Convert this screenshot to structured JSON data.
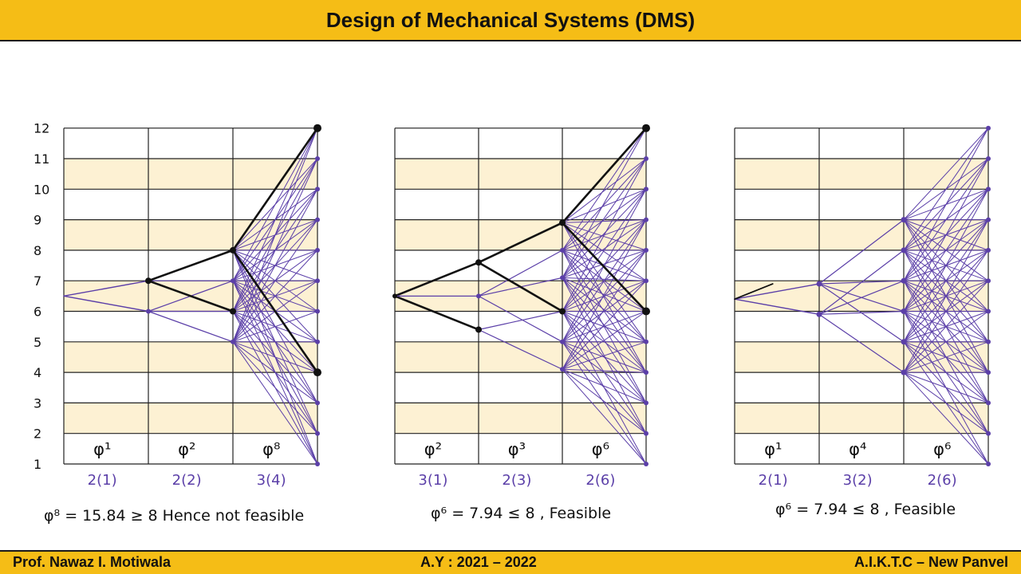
{
  "header": {
    "title": "Design of Mechanical Systems (DMS)"
  },
  "footer": {
    "left": "Prof. Nawaz I. Motiwala",
    "center": "A.Y : 2021 – 2022",
    "right": "A.I.K.T.C – New Panvel"
  },
  "colors": {
    "bar": "#f5bd16",
    "band": "#fdf1d3",
    "pen_black": "#111111",
    "pen_purple": "#5b3fa8"
  },
  "axis": {
    "y_labels": [
      "1",
      "2",
      "3",
      "4",
      "5",
      "6",
      "7",
      "8",
      "9",
      "10",
      "11",
      "12"
    ]
  },
  "diagrams": [
    {
      "id": "left",
      "stage_labels": [
        "φ¹",
        "φ²",
        "φ⁸"
      ],
      "sub_labels": [
        "2(1)",
        "2(2)",
        "3(4)"
      ],
      "conclusion": "φ⁸ = 15.84 ≥ 8   Hence not feasible"
    },
    {
      "id": "middle",
      "stage_labels": [
        "φ²",
        "φ³",
        "φ⁶"
      ],
      "sub_labels": [
        "3(1)",
        "2(3)",
        "2(6)"
      ],
      "conclusion": "φ⁶ = 7.94 ≤ 8 , Feasible"
    },
    {
      "id": "right",
      "stage_labels": [
        "φ¹",
        "φ⁴",
        "φ⁶"
      ],
      "sub_labels": [
        "2(1)",
        "3(2)",
        "2(6)"
      ],
      "conclusion": "φ⁶ = 7.94 ≤ 8 , Feasible"
    }
  ]
}
